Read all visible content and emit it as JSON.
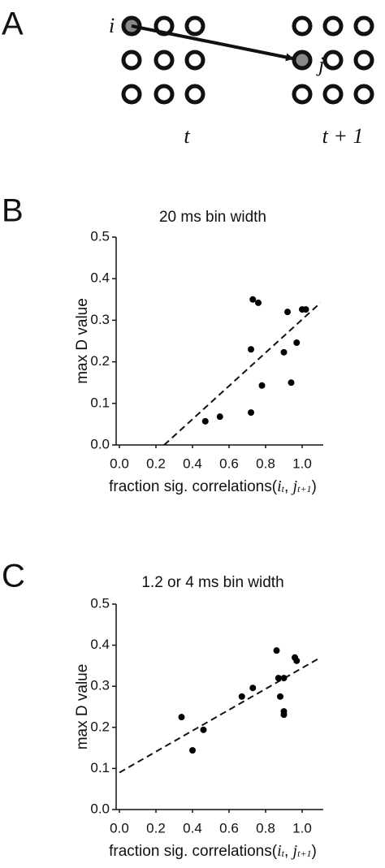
{
  "diagram": {
    "panel": "A",
    "source_label": "i",
    "target_label": "j",
    "left_time": "t",
    "right_time": "t + 1"
  },
  "chart_data": [
    {
      "type": "scatter",
      "panel": "B",
      "title": "20 ms bin width",
      "ylabel": "max D value",
      "xlabel": [
        "fraction sig. correlations(",
        "i",
        "t",
        ", ",
        "j",
        "t+1",
        ")"
      ],
      "x": [
        0.47,
        0.55,
        0.72,
        0.72,
        0.73,
        0.76,
        0.78,
        0.9,
        0.92,
        0.94,
        0.97,
        1.0,
        1.02
      ],
      "values": [
        0.057,
        0.068,
        0.078,
        0.23,
        0.35,
        0.342,
        0.143,
        0.223,
        0.32,
        0.15,
        0.246,
        0.326,
        0.326
      ],
      "fit": {
        "x": [
          0.245,
          1.1
        ],
        "y": [
          0,
          0.342
        ]
      },
      "color": "#000000",
      "xlim": [
        0,
        1.1
      ],
      "ylim": [
        0,
        0.5
      ],
      "xticks": [
        {
          "value": 0,
          "label": "0.0"
        },
        0.2,
        0.4,
        0.6,
        0.8,
        {
          "value": 1,
          "label": "1.0"
        }
      ],
      "yticks": [
        {
          "value": 0,
          "label": "0.0"
        },
        0.1,
        0.2,
        0.3,
        0.4,
        0.5
      ]
    },
    {
      "type": "scatter",
      "panel": "C",
      "title": "1.2 or 4 ms bin width",
      "ylabel": "max D value",
      "xlabel": [
        "fraction sig. correlations(",
        "i",
        "t",
        ", ",
        "j",
        "t+1",
        ")"
      ],
      "x": [
        0.34,
        0.4,
        0.46,
        0.67,
        0.73,
        0.86,
        0.87,
        0.88,
        0.9,
        0.9,
        0.9,
        0.96,
        0.97
      ],
      "values": [
        0.225,
        0.144,
        0.194,
        0.275,
        0.296,
        0.387,
        0.32,
        0.275,
        0.32,
        0.239,
        0.231,
        0.37,
        0.362
      ],
      "fit": {
        "x": [
          0,
          1.1
        ],
        "y": [
          0.09,
          0.37
        ]
      },
      "color": "#000000",
      "xlim": [
        0,
        1.1
      ],
      "ylim": [
        0,
        0.5
      ],
      "xticks": [
        {
          "value": 0,
          "label": "0.0"
        },
        0.2,
        0.4,
        0.6,
        0.8,
        {
          "value": 1,
          "label": "1.0"
        }
      ],
      "yticks": [
        {
          "value": 0,
          "label": "0.0"
        },
        0.1,
        0.2,
        0.3,
        0.4,
        0.5
      ]
    }
  ]
}
